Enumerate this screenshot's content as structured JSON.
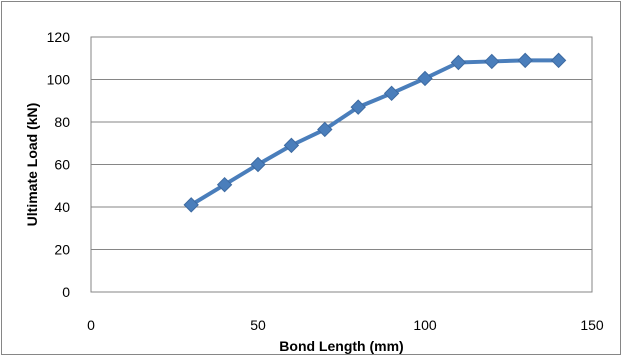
{
  "chart_data": {
    "type": "line",
    "title": "",
    "xlabel": "Bond Length (mm)",
    "ylabel": "Ultimate Load (kN)",
    "xlim": [
      0,
      150
    ],
    "ylim": [
      0,
      120
    ],
    "x_ticks": [
      0,
      50,
      100,
      150
    ],
    "y_ticks": [
      0,
      20,
      40,
      60,
      80,
      100,
      120
    ],
    "x_tick_labels": [
      "0",
      "50",
      "100",
      "150"
    ],
    "y_tick_labels": [
      "0",
      "20",
      "40",
      "60",
      "80",
      "100",
      "120"
    ],
    "grid": "horizontal",
    "legend": "none",
    "series": [
      {
        "color": "#4a7ebb",
        "marker": "diamond",
        "x": [
          30,
          40,
          50,
          60,
          70,
          80,
          90,
          100,
          110,
          120,
          130,
          140
        ],
        "y": [
          41,
          50.5,
          60,
          69,
          76.5,
          87,
          93.5,
          100.5,
          108,
          108.5,
          109,
          109
        ]
      }
    ]
  }
}
